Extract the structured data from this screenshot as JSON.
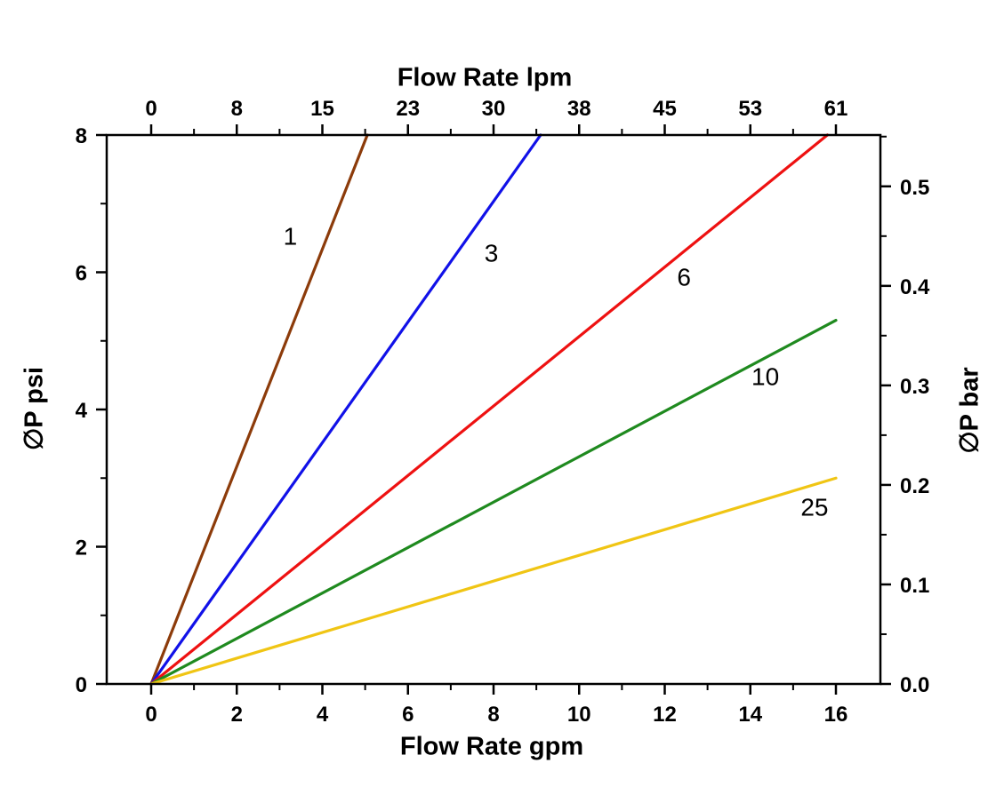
{
  "chart_data": {
    "type": "line",
    "title": "",
    "x_bottom": {
      "label": "Flow Rate gpm",
      "tick_values": [
        0,
        2,
        4,
        6,
        8,
        10,
        12,
        14,
        16
      ],
      "tick_labels": [
        "0",
        "2",
        "4",
        "6",
        "8",
        "10",
        "12",
        "14",
        "16"
      ],
      "minor_ticks": [
        1,
        3,
        5,
        7,
        9,
        11,
        13,
        15
      ],
      "range": [
        -1.05,
        17.05
      ]
    },
    "x_top": {
      "label": "Flow Rate lpm",
      "tick_values": [
        0,
        2,
        4,
        6,
        8,
        10,
        12,
        14,
        16
      ],
      "tick_labels": [
        "0",
        "8",
        "15",
        "23",
        "30",
        "38",
        "45",
        "53",
        "61"
      ],
      "minor_ticks": [
        1,
        3,
        5,
        7,
        9,
        11,
        13,
        15
      ]
    },
    "y_left": {
      "label": "∅P psi",
      "tick_values": [
        0,
        2,
        4,
        6,
        8
      ],
      "tick_labels": [
        "0",
        "2",
        "4",
        "6",
        "8"
      ],
      "minor_ticks": [
        1,
        3,
        5,
        7
      ],
      "range": [
        0,
        8
      ]
    },
    "y_right": {
      "label": "∅P bar",
      "tick_values": [
        0,
        0.1,
        0.2,
        0.3,
        0.4,
        0.5
      ],
      "tick_labels": [
        "0.0",
        "0.1",
        "0.2",
        "0.3",
        "0.4",
        "0.5"
      ],
      "minor_ticks": [
        0.05,
        0.15,
        0.25,
        0.35,
        0.45,
        0.55
      ],
      "psi_per_bar": 14.5038
    },
    "grid": false,
    "legend_position": "inline-labels",
    "series": [
      {
        "label": "1",
        "color": "#8C3B0A",
        "x": [
          0,
          5.05
        ],
        "y": [
          0,
          8
        ],
        "label_at": [
          3.25,
          6.5
        ]
      },
      {
        "label": "3",
        "color": "#1111E8",
        "x": [
          0,
          9.1
        ],
        "y": [
          0,
          8
        ],
        "label_at": [
          7.95,
          6.25
        ]
      },
      {
        "label": "6",
        "color": "#EE1111",
        "x": [
          0,
          15.8
        ],
        "y": [
          0,
          8
        ],
        "label_at": [
          12.45,
          5.9
        ]
      },
      {
        "label": "10",
        "color": "#1F8A1F",
        "x": [
          0,
          16.0
        ],
        "y": [
          0,
          5.3
        ],
        "label_at": [
          14.35,
          4.45
        ]
      },
      {
        "label": "25",
        "color": "#F0C514",
        "x": [
          0,
          16.0
        ],
        "y": [
          0,
          3.0
        ],
        "label_at": [
          15.5,
          2.55
        ]
      }
    ]
  }
}
